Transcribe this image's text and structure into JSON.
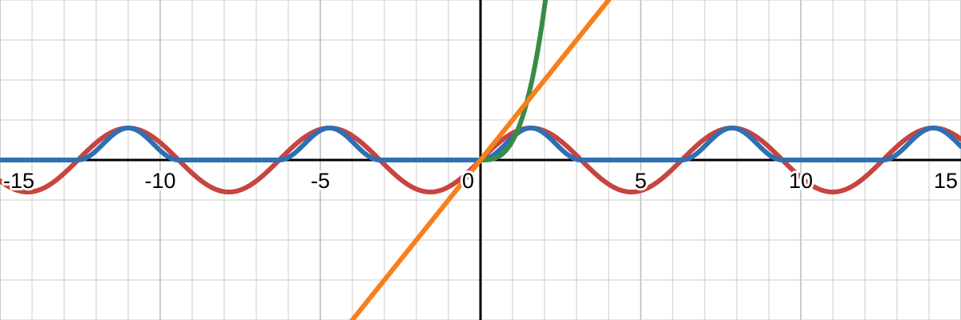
{
  "chart_data": {
    "type": "line",
    "title": "",
    "xlabel": "",
    "ylabel": "",
    "xlim": [
      -15,
      15
    ],
    "ylim": [
      -4,
      4
    ],
    "grid": true,
    "x_tick_labels": [
      "-15",
      "-10",
      "-5",
      "0",
      "5",
      "10",
      "15"
    ],
    "x_tick_values": [
      -15,
      -10,
      -5,
      0,
      5,
      10,
      15
    ],
    "series": [
      {
        "color": "#c74440",
        "formula_samples": {
          "x": [
            -15,
            -12.5,
            -11.0,
            -10.0,
            -7.9,
            -5.0,
            -4.7,
            -3.0,
            -1.6,
            0,
            1.6,
            3.0,
            4.7,
            6.0,
            7.9,
            10.0,
            11.0,
            12.5,
            14.1,
            15
          ],
          "y": [
            -0.65,
            0.06,
            0.8,
            0.44,
            -0.8,
            0.77,
            0.8,
            -0.11,
            -0.8,
            0,
            0.8,
            0.11,
            -0.8,
            -0.22,
            0.8,
            -0.44,
            -0.8,
            -0.06,
            0.8,
            0.65
          ]
        }
      },
      {
        "color": "#2d70b3",
        "formula_samples": {
          "x": [
            -15,
            -12.6,
            -11.0,
            -9.4,
            -7.9,
            -6.3,
            -4.7,
            -3.1,
            -1.6,
            0,
            1.6,
            3.1,
            4.7,
            6.3,
            7.9,
            9.4,
            11.0,
            12.6,
            14.1,
            15
          ],
          "y": [
            0.0,
            0.0,
            0.8,
            0.0,
            0.0,
            0.0,
            0.8,
            0.0,
            0.0,
            0.0,
            0.8,
            0.0,
            0.0,
            0.0,
            0.8,
            0.0,
            0.0,
            0.0,
            0.8,
            0.3
          ]
        }
      },
      {
        "color": "#388c46",
        "formula_samples": {
          "x": [
            0,
            0.25,
            0.5,
            0.75,
            1.0,
            1.25,
            1.5,
            1.75,
            2.0,
            2.1
          ],
          "y": [
            0,
            0.01,
            0.06,
            0.2,
            0.48,
            0.94,
            1.62,
            2.57,
            3.84,
            4.2
          ]
        }
      },
      {
        "color": "#fa7e19",
        "formula_samples": {
          "x": [
            -4,
            4
          ],
          "y": [
            -4,
            4
          ]
        }
      }
    ]
  }
}
